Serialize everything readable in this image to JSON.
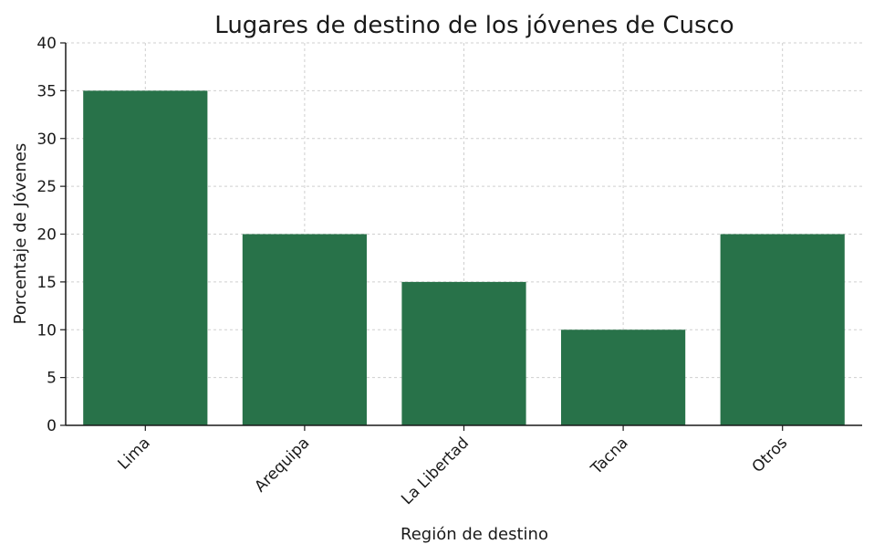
{
  "chart_data": {
    "type": "bar",
    "title": "Lugares de destino de los jóvenes de Cusco",
    "xlabel": "Región de destino",
    "ylabel": "Porcentaje de Jóvenes",
    "categories": [
      "Lima",
      "Arequipa",
      "La Libertad",
      "Tacna",
      "Otros"
    ],
    "values": [
      35,
      20,
      15,
      10,
      20
    ],
    "ylim": [
      0,
      40
    ],
    "yticks": [
      0,
      5,
      10,
      15,
      20,
      25,
      30,
      35,
      40
    ],
    "grid": true,
    "bar_color": "#287249"
  }
}
